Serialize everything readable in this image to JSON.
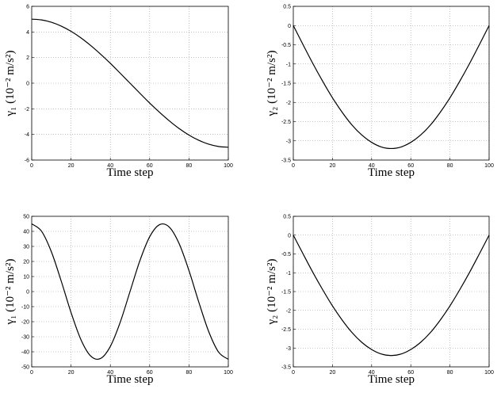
{
  "chart_data": [
    {
      "type": "line",
      "xlabel": "Time step",
      "ylabel": "γ₁ (10⁻² m/s²)",
      "color": "#000000",
      "grid": true,
      "xlim": [
        0,
        100
      ],
      "xticks": [
        0,
        20,
        40,
        60,
        80,
        100
      ],
      "ylim": [
        -6,
        6
      ],
      "yticks": [
        -6,
        -4,
        -2,
        0,
        2,
        4,
        6
      ],
      "x": [
        0,
        5,
        10,
        15,
        20,
        25,
        30,
        35,
        40,
        45,
        50,
        55,
        60,
        65,
        70,
        75,
        80,
        85,
        90,
        95,
        100
      ],
      "values": [
        5,
        4.94,
        4.76,
        4.46,
        4.05,
        3.54,
        2.94,
        2.27,
        1.55,
        0.78,
        0,
        -0.78,
        -1.55,
        -2.27,
        -2.94,
        -3.54,
        -4.05,
        -4.46,
        -4.76,
        -4.94,
        -5
      ]
    },
    {
      "type": "line",
      "xlabel": "Time step",
      "ylabel": "γ₂ (10⁻² m/s²)",
      "color": "#000000",
      "grid": true,
      "xlim": [
        0,
        100
      ],
      "xticks": [
        0,
        20,
        40,
        60,
        80,
        100
      ],
      "ylim": [
        -3.5,
        0.5
      ],
      "yticks": [
        -3.5,
        -3,
        -2.5,
        -2,
        -1.5,
        -1,
        -0.5,
        0,
        0.5
      ],
      "x": [
        0,
        5,
        10,
        15,
        20,
        25,
        30,
        35,
        40,
        45,
        50,
        55,
        60,
        65,
        70,
        75,
        80,
        85,
        90,
        95,
        100
      ],
      "values": [
        0,
        -0.5,
        -0.99,
        -1.45,
        -1.88,
        -2.26,
        -2.59,
        -2.85,
        -3.04,
        -3.16,
        -3.2,
        -3.16,
        -3.04,
        -2.85,
        -2.59,
        -2.26,
        -1.88,
        -1.45,
        -0.99,
        -0.5,
        0
      ]
    },
    {
      "type": "line",
      "xlabel": "Time step",
      "ylabel": "γ₁ (10⁻² m/s²)",
      "color": "#000000",
      "grid": true,
      "xlim": [
        0,
        100
      ],
      "xticks": [
        0,
        20,
        40,
        60,
        80,
        100
      ],
      "ylim": [
        -50,
        50
      ],
      "yticks": [
        -50,
        -40,
        -30,
        -20,
        -10,
        0,
        10,
        20,
        30,
        40,
        50
      ],
      "x": [
        0,
        5,
        10,
        15,
        20,
        25,
        30,
        35,
        40,
        45,
        50,
        55,
        60,
        65,
        70,
        75,
        80,
        85,
        90,
        95,
        100
      ],
      "values": [
        45,
        40.1,
        26.45,
        7.04,
        -13.9,
        -31.82,
        -42.8,
        -44.45,
        -36.4,
        -20.43,
        0,
        20.43,
        36.4,
        44.45,
        42.8,
        31.82,
        13.9,
        -7.04,
        -26.45,
        -40.1,
        -45
      ]
    },
    {
      "type": "line",
      "xlabel": "Time step",
      "ylabel": "γ₂ (10⁻² m/s²)",
      "color": "#000000",
      "grid": true,
      "xlim": [
        0,
        100
      ],
      "xticks": [
        0,
        20,
        40,
        60,
        80,
        100
      ],
      "ylim": [
        -3.5,
        0.5
      ],
      "yticks": [
        -3.5,
        -3,
        -2.5,
        -2,
        -1.5,
        -1,
        -0.5,
        0,
        0.5
      ],
      "x": [
        0,
        5,
        10,
        15,
        20,
        25,
        30,
        35,
        40,
        45,
        50,
        55,
        60,
        65,
        70,
        75,
        80,
        85,
        90,
        95,
        100
      ],
      "values": [
        0,
        -0.5,
        -0.99,
        -1.45,
        -1.88,
        -2.26,
        -2.59,
        -2.85,
        -3.04,
        -3.16,
        -3.2,
        -3.16,
        -3.04,
        -2.85,
        -2.59,
        -2.26,
        -1.88,
        -1.45,
        -0.99,
        -0.5,
        0
      ]
    }
  ]
}
